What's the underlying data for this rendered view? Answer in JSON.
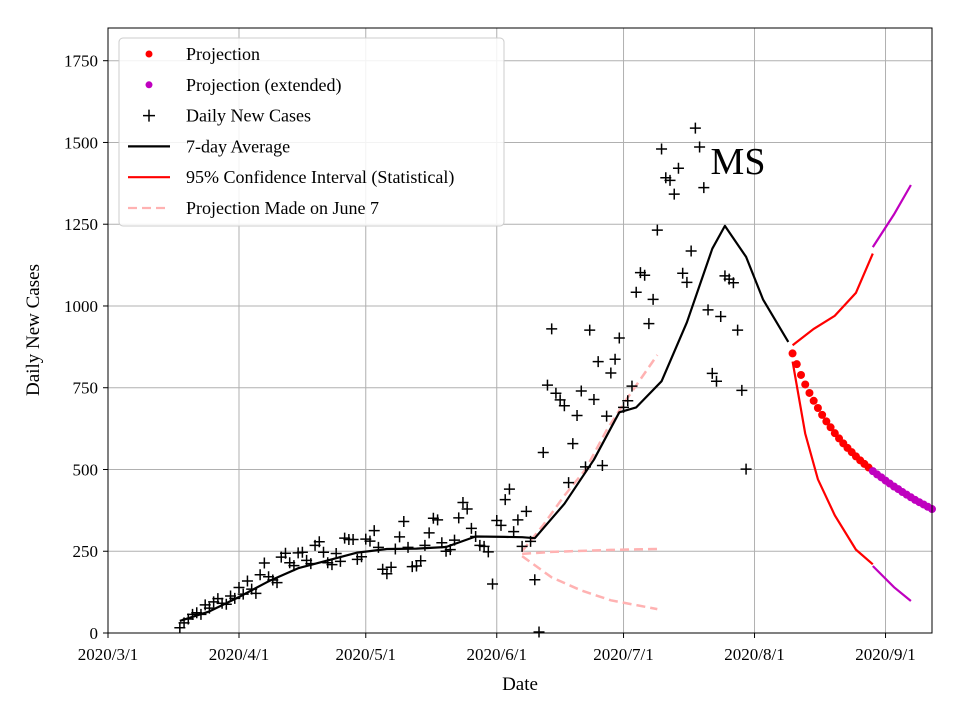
{
  "chart_data": {
    "type": "line",
    "title": "",
    "annotation": "MS",
    "xlabel": "Date",
    "ylabel": "Daily New Cases",
    "x_domain": [
      "2020-03-01",
      "2020-09-12"
    ],
    "ylim": [
      0,
      1850
    ],
    "grid": true,
    "legend_position": "top-left",
    "x_ticks": [
      {
        "date": "2020-03-01",
        "label": "2020/3/1"
      },
      {
        "date": "2020-04-01",
        "label": "2020/4/1"
      },
      {
        "date": "2020-05-01",
        "label": "2020/5/1"
      },
      {
        "date": "2020-06-01",
        "label": "2020/6/1"
      },
      {
        "date": "2020-07-01",
        "label": "2020/7/1"
      },
      {
        "date": "2020-08-01",
        "label": "2020/8/1"
      },
      {
        "date": "2020-09-01",
        "label": "2020/9/1"
      }
    ],
    "y_ticks": [
      0,
      250,
      500,
      750,
      1000,
      1250,
      1500,
      1750
    ],
    "colors": {
      "projection": "#ff0000",
      "projection_extended": "#bf00bf",
      "daily": "#000000",
      "average": "#000000",
      "ci": "#ff0000",
      "june7": "#ffb2b2"
    },
    "legend": [
      {
        "key": "projection",
        "label": "Projection",
        "style": "dot",
        "color": "#ff0000"
      },
      {
        "key": "projection_extended",
        "label": "Projection (extended)",
        "style": "dot",
        "color": "#bf00bf"
      },
      {
        "key": "daily",
        "label": "Daily New Cases",
        "style": "plus",
        "color": "#000000"
      },
      {
        "key": "average",
        "label": "7-day Average",
        "style": "line",
        "color": "#000000"
      },
      {
        "key": "ci",
        "label": "95% Confidence Interval (Statistical)",
        "style": "line",
        "color": "#ff0000"
      },
      {
        "key": "june7",
        "label": "Projection Made on June 7",
        "style": "dashed",
        "color": "#ffb2b2"
      }
    ],
    "series": [
      {
        "name": "Daily New Cases",
        "type": "scatter",
        "x_start": "2020-03-18",
        "values": [
          16,
          31,
          43,
          57,
          62,
          57,
          86,
          76,
          95,
          105,
          91,
          88,
          113,
          106,
          139,
          119,
          159,
          134,
          121,
          178,
          214,
          172,
          162,
          154,
          232,
          244,
          215,
          206,
          245,
          247,
          222,
          212,
          268,
          279,
          247,
          215,
          209,
          243,
          219,
          290,
          286,
          286,
          225,
          233,
          287,
          281,
          313,
          262,
          195,
          181,
          201,
          257,
          294,
          341,
          262,
          203,
          205,
          221,
          268,
          306,
          351,
          346,
          276,
          250,
          255,
          284,
          352,
          399,
          379,
          320,
          295,
          268,
          265,
          248,
          150,
          344,
          329,
          408,
          440,
          310,
          346,
          265,
          372,
          280,
          163,
          3,
          552,
          758,
          930,
          733,
          713,
          695,
          460,
          579,
          665,
          740,
          508,
          926,
          714,
          830,
          512,
          663,
          795,
          837,
          902,
          690,
          710,
          755,
          1042,
          1102,
          1094,
          946,
          1020,
          1232,
          1480,
          1392,
          1384,
          1342,
          1421,
          1100,
          1072,
          1168,
          1544,
          1486,
          1362,
          988,
          794,
          770,
          968,
          1092,
          1082,
          1071,
          926,
          742,
          501
        ]
      },
      {
        "name": "7-day Average",
        "type": "line",
        "points": [
          [
            "2020-03-18",
            37
          ],
          [
            "2020-03-25",
            66
          ],
          [
            "2020-04-01",
            110
          ],
          [
            "2020-04-08",
            158
          ],
          [
            "2020-04-15",
            198
          ],
          [
            "2020-04-22",
            222
          ],
          [
            "2020-04-29",
            246
          ],
          [
            "2020-05-06",
            257
          ],
          [
            "2020-05-13",
            258
          ],
          [
            "2020-05-20",
            263
          ],
          [
            "2020-05-27",
            295
          ],
          [
            "2020-06-03",
            294
          ],
          [
            "2020-06-07",
            293
          ],
          [
            "2020-06-10",
            290
          ],
          [
            "2020-06-17",
            395
          ],
          [
            "2020-06-24",
            530
          ],
          [
            "2020-06-30",
            675
          ],
          [
            "2020-07-04",
            690
          ],
          [
            "2020-07-10",
            770
          ],
          [
            "2020-07-16",
            950
          ],
          [
            "2020-07-22",
            1175
          ],
          [
            "2020-07-25",
            1245
          ],
          [
            "2020-07-30",
            1150
          ],
          [
            "2020-08-03",
            1020
          ],
          [
            "2020-08-09",
            890
          ]
        ]
      },
      {
        "name": "Projection",
        "type": "scatter",
        "x_start": "2020-08-10",
        "values": [
          855,
          822,
          789,
          760,
          734,
          710,
          688,
          667,
          647,
          629,
          611,
          595,
          580,
          566,
          553,
          540,
          528,
          517,
          506
        ]
      },
      {
        "name": "Projection (extended)",
        "type": "scatter",
        "x_start": "2020-08-29",
        "values": [
          495,
          485,
          476,
          466,
          457,
          448,
          440,
          431,
          423,
          415,
          407,
          400,
          393,
          386,
          379
        ]
      },
      {
        "name": "95% CI Upper",
        "type": "line",
        "points": [
          [
            "2020-08-10",
            880
          ],
          [
            "2020-08-15",
            930
          ],
          [
            "2020-08-20",
            970
          ],
          [
            "2020-08-25",
            1040
          ],
          [
            "2020-08-29",
            1160
          ]
        ],
        "extended_points": [
          [
            "2020-08-29",
            1180
          ],
          [
            "2020-09-03",
            1280
          ],
          [
            "2020-09-07",
            1370
          ]
        ]
      },
      {
        "name": "95% CI Lower",
        "type": "line",
        "points": [
          [
            "2020-08-10",
            830
          ],
          [
            "2020-08-13",
            610
          ],
          [
            "2020-08-16",
            470
          ],
          [
            "2020-08-20",
            360
          ],
          [
            "2020-08-25",
            255
          ],
          [
            "2020-08-29",
            210
          ]
        ],
        "extended_points": [
          [
            "2020-08-29",
            205
          ],
          [
            "2020-09-03",
            140
          ],
          [
            "2020-09-07",
            98
          ]
        ]
      },
      {
        "name": "Projection Made on June 7",
        "type": "dashed",
        "lines": [
          [
            [
              "2020-06-07",
              250
            ],
            [
              "2020-06-12",
              330
            ],
            [
              "2020-06-17",
              420
            ],
            [
              "2020-06-22",
              500
            ],
            [
              "2020-06-27",
              620
            ],
            [
              "2020-07-02",
              720
            ],
            [
              "2020-07-09",
              850
            ]
          ],
          [
            [
              "2020-06-07",
              242
            ],
            [
              "2020-06-14",
              248
            ],
            [
              "2020-06-21",
              251
            ],
            [
              "2020-06-28",
              254
            ],
            [
              "2020-07-09",
              257
            ]
          ],
          [
            [
              "2020-06-07",
              235
            ],
            [
              "2020-06-14",
              170
            ],
            [
              "2020-06-21",
              130
            ],
            [
              "2020-06-28",
              100
            ],
            [
              "2020-07-09",
              73
            ]
          ]
        ]
      }
    ]
  }
}
